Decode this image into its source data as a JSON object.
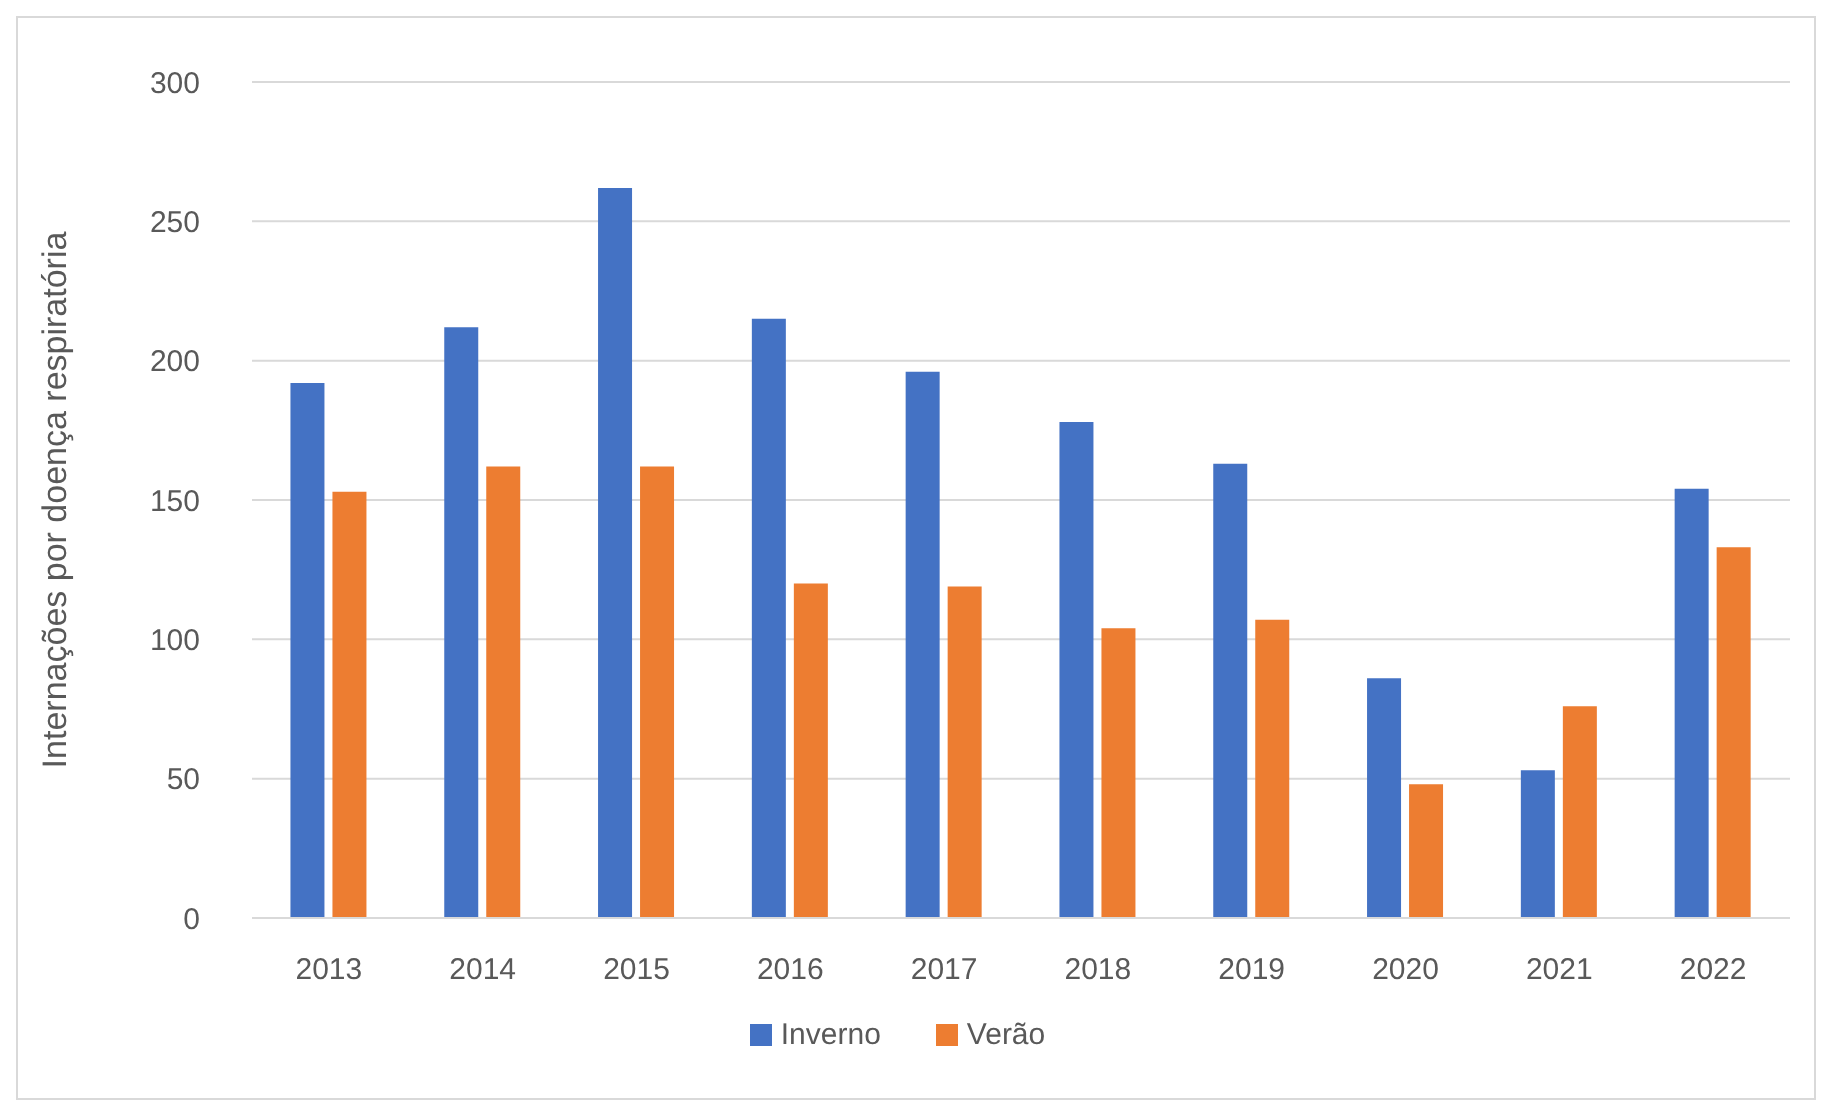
{
  "chart_data": {
    "type": "bar",
    "ylabel": "Internações por doença respiratória",
    "categories": [
      "2013",
      "2014",
      "2015",
      "2016",
      "2017",
      "2018",
      "2019",
      "2020",
      "2021",
      "2022"
    ],
    "series": [
      {
        "name": "Inverno",
        "color": "#4472c4",
        "values": [
          192,
          212,
          262,
          215,
          196,
          178,
          163,
          86,
          53,
          154
        ]
      },
      {
        "name": "Verão",
        "color": "#ed7d31",
        "values": [
          153,
          162,
          162,
          120,
          119,
          104,
          107,
          48,
          76,
          133
        ]
      }
    ],
    "ylim": [
      0,
      300
    ],
    "yticks": [
      0,
      50,
      100,
      150,
      200,
      250,
      300
    ],
    "grid": "y",
    "legend": "bottom"
  }
}
